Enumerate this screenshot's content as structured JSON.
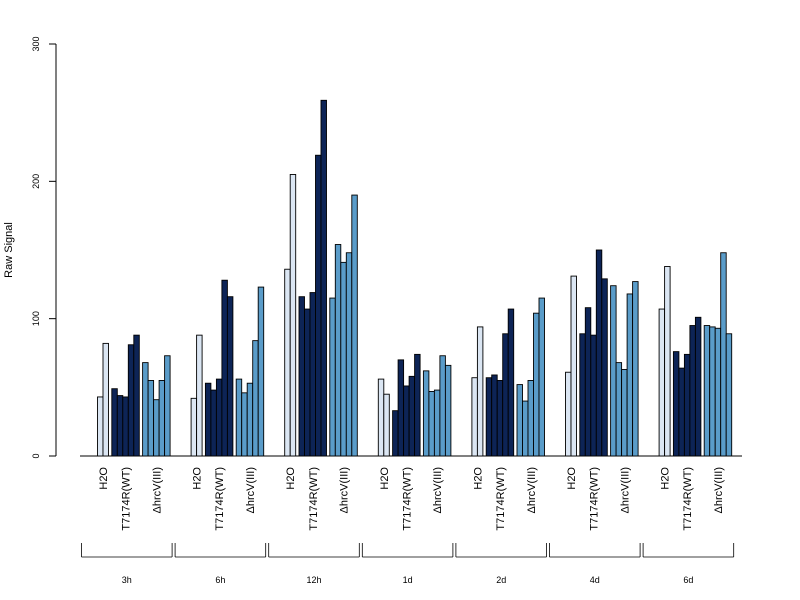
{
  "chart_data": {
    "type": "bar",
    "ylabel": "Raw Signal",
    "ylim": [
      0,
      300
    ],
    "yticks": [
      0,
      100,
      200,
      300
    ],
    "colors": {
      "H2O": "#dbe6f3",
      "T7174R(WT)": "#0d2456",
      "ΔhrcV(III)": "#5a9cc9"
    },
    "groups": [
      {
        "time": "3h",
        "treatments": [
          {
            "label": "H2O",
            "values": [
              43,
              82
            ]
          },
          {
            "label": "T7174R(WT)",
            "values": [
              49,
              44,
              43,
              81,
              88
            ]
          },
          {
            "label": "ΔhrcV(III)",
            "values": [
              68,
              55,
              41,
              55,
              73
            ]
          }
        ]
      },
      {
        "time": "6h",
        "treatments": [
          {
            "label": "H2O",
            "values": [
              42,
              88
            ]
          },
          {
            "label": "T7174R(WT)",
            "values": [
              53,
              48,
              56,
              128,
              116
            ]
          },
          {
            "label": "ΔhrcV(III)",
            "values": [
              56,
              46,
              53,
              84,
              123
            ]
          }
        ]
      },
      {
        "time": "12h",
        "treatments": [
          {
            "label": "H2O",
            "values": [
              136,
              205
            ]
          },
          {
            "label": "T7174R(WT)",
            "values": [
              116,
              107,
              119,
              219,
              259
            ]
          },
          {
            "label": "ΔhrcV(III)",
            "values": [
              115,
              154,
              141,
              148,
              190
            ]
          }
        ]
      },
      {
        "time": "1d",
        "treatments": [
          {
            "label": "H2O",
            "values": [
              56,
              45
            ]
          },
          {
            "label": "T7174R(WT)",
            "values": [
              33,
              70,
              51,
              58,
              74
            ]
          },
          {
            "label": "ΔhrcV(III)",
            "values": [
              62,
              47,
              48,
              73,
              66
            ]
          }
        ]
      },
      {
        "time": "2d",
        "treatments": [
          {
            "label": "H2O",
            "values": [
              57,
              94
            ]
          },
          {
            "label": "T7174R(WT)",
            "values": [
              57,
              59,
              55,
              89,
              107
            ]
          },
          {
            "label": "ΔhrcV(III)",
            "values": [
              52,
              40,
              55,
              104,
              115
            ]
          }
        ]
      },
      {
        "time": "4d",
        "treatments": [
          {
            "label": "H2O",
            "values": [
              61,
              131
            ]
          },
          {
            "label": "T7174R(WT)",
            "values": [
              89,
              108,
              88,
              150,
              129
            ]
          },
          {
            "label": "ΔhrcV(III)",
            "values": [
              124,
              68,
              63,
              118,
              127
            ]
          }
        ]
      },
      {
        "time": "6d",
        "treatments": [
          {
            "label": "H2O",
            "values": [
              107,
              138
            ]
          },
          {
            "label": "T7174R(WT)",
            "values": [
              76,
              64,
              74,
              95,
              101
            ]
          },
          {
            "label": "ΔhrcV(III)",
            "values": [
              95,
              94,
              93,
              148,
              89
            ]
          }
        ]
      }
    ]
  }
}
